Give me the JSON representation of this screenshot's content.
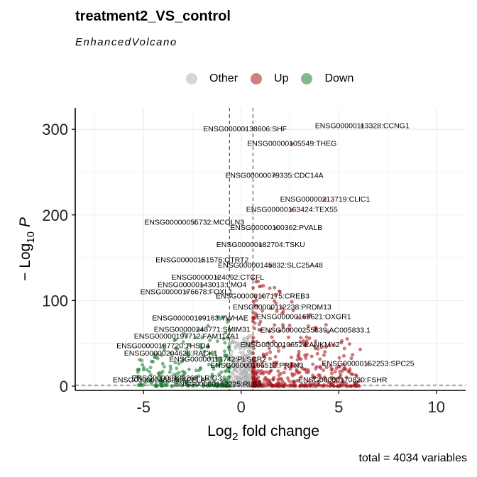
{
  "title": "treatment2_VS_control",
  "subtitle": "EnhancedVolcano",
  "caption": "total = 4034 variables",
  "legend": [
    {
      "label": "Other",
      "color": "#b3b3b3"
    },
    {
      "label": "Up",
      "color": "#a4161a"
    },
    {
      "label": "Down",
      "color": "#1e7b34"
    }
  ],
  "colors": {
    "other": "#b3b3b3",
    "up": "#a4161a",
    "down": "#1e7b34"
  },
  "chart_data": {
    "type": "scatter",
    "title": "treatment2_VS_control",
    "subtitle": "EnhancedVolcano",
    "xlabel": "Log2 fold change",
    "ylabel": "-Log10 P",
    "xlim": [
      -8.5,
      11.5
    ],
    "ylim": [
      -5,
      325
    ],
    "xticks": [
      -5,
      0,
      5,
      10
    ],
    "yticks": [
      0,
      100,
      200,
      300
    ],
    "fc_cutoff": [
      -0.6,
      0.6
    ],
    "p_cutoff": 1.3,
    "grid": true,
    "legend_position": "top",
    "labeled_points": [
      {
        "gene": "ENSG00000138606:SHF",
        "x": 0.2,
        "y": 300
      },
      {
        "gene": "ENSG00000113328:CCNG1",
        "x": 6.2,
        "y": 304
      },
      {
        "gene": "ENSG00000105549:THEG",
        "x": 2.6,
        "y": 283
      },
      {
        "gene": "ENSG00000079335:CDC14A",
        "x": 1.7,
        "y": 246
      },
      {
        "gene": "ENSG00000213719:CLIC1",
        "x": 4.3,
        "y": 218
      },
      {
        "gene": "ENSG00000163424:TEX55",
        "x": 2.6,
        "y": 206
      },
      {
        "gene": "ENSG00000055732:MCOLN3",
        "x": -2.4,
        "y": 191
      },
      {
        "gene": "ENSG00000100362:PVALB",
        "x": 1.8,
        "y": 185
      },
      {
        "gene": "ENSG00000182704:TSKU",
        "x": 1.0,
        "y": 165
      },
      {
        "gene": "ENSG00000151576:QTRT2",
        "x": -2.0,
        "y": 147
      },
      {
        "gene": "ENSG00000145832:SLC25A48",
        "x": 1.5,
        "y": 141
      },
      {
        "gene": "ENSG00000124092:CTCFL",
        "x": -1.2,
        "y": 127
      },
      {
        "gene": "ENSG00000143013:LMO4",
        "x": -2.0,
        "y": 118
      },
      {
        "gene": "ENSG00000176678:FOXL1",
        "x": -2.8,
        "y": 110
      },
      {
        "gene": "ENSG00000107175:CREB3",
        "x": 1.1,
        "y": 105
      },
      {
        "gene": "ENSG00000112238:PRDM13",
        "x": 2.1,
        "y": 92
      },
      {
        "gene": "ENSG00000109163:YWHAE",
        "x": -2.1,
        "y": 79
      },
      {
        "gene": "ENSG00000165621:OXGR1",
        "x": 3.2,
        "y": 81
      },
      {
        "gene": "ENSG00000248771:SMIM31",
        "x": -2.0,
        "y": 66
      },
      {
        "gene": "ENSG00000255639:AC005833.1",
        "x": 3.8,
        "y": 65
      },
      {
        "gene": "ENSG00000197712:FAM114A1",
        "x": -2.8,
        "y": 58
      },
      {
        "gene": "ENSG00000187720:THSD4",
        "x": -4.0,
        "y": 47
      },
      {
        "gene": "ENSG00000106524:ANKMY2",
        "x": 2.5,
        "y": 48
      },
      {
        "gene": "ENSG00000204628:RACK1",
        "x": -3.6,
        "y": 38
      },
      {
        "gene": "ENSG00000113742:PLSCR2",
        "x": -1.2,
        "y": 31
      },
      {
        "gene": "ENSG00000196513:PRTN3",
        "x": 0.8,
        "y": 24
      },
      {
        "gene": "ENSG00000152253:SPC25",
        "x": 6.5,
        "y": 26
      },
      {
        "gene": "ENSG00000248329:APELA",
        "x": -4.2,
        "y": 7
      },
      {
        "gene": "ENSG00000139263:LRIG3",
        "x": -3.3,
        "y": 9
      },
      {
        "gene": "ENSG00000170820:FSHR",
        "x": 5.2,
        "y": 7
      },
      {
        "gene": "ENSG00000162225:RLB3",
        "x": -1.2,
        "y": 2
      }
    ]
  }
}
